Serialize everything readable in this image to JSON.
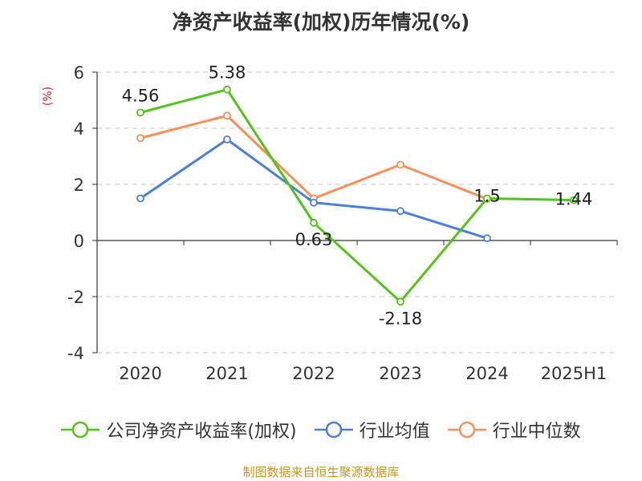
{
  "chart_data": {
    "type": "line",
    "title": "净资产收益率(加权)历年情况(%)",
    "ylabel": "(%)",
    "categories": [
      "2020",
      "2021",
      "2022",
      "2023",
      "2024",
      "2025H1"
    ],
    "ylim": [
      -4,
      6
    ],
    "yticks": [
      "6",
      "4",
      "2",
      "0",
      "-2",
      "-4"
    ],
    "grid": true,
    "legend_position": "bottom",
    "series": [
      {
        "name": "公司净资产收益率(加权)",
        "color": "#52c41a",
        "values": [
          4.56,
          5.38,
          0.63,
          -2.18,
          1.5,
          1.44
        ],
        "labels": [
          "4.56",
          "5.38",
          "0.63",
          "-2.18",
          "1.5",
          "1.44"
        ]
      },
      {
        "name": "行业均值",
        "color": "#4a7fdc",
        "values": [
          1.5,
          3.6,
          1.35,
          1.05,
          0.08,
          null
        ]
      },
      {
        "name": "行业中位数",
        "color": "#f79059",
        "values": [
          3.65,
          4.45,
          1.5,
          2.7,
          1.48,
          null
        ]
      }
    ]
  },
  "source": "制图数据来自恒生聚源数据库"
}
